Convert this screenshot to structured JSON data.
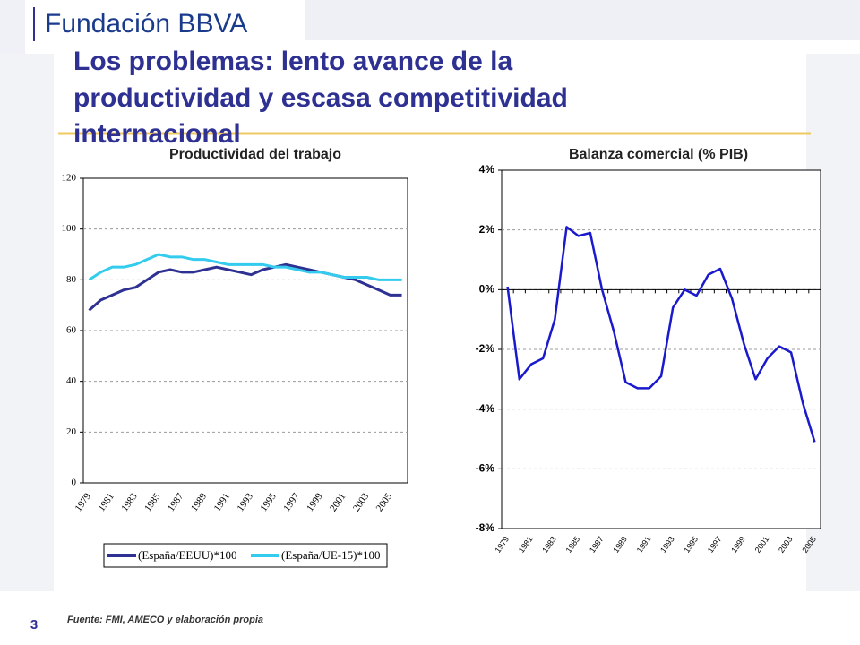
{
  "slide": {
    "logo": "Fundación BBVA",
    "title_lines": [
      "Los problemas: lento avance de la",
      "productividad y escasa competitividad",
      "internacional"
    ],
    "page_number": "3",
    "source": "Fuente:  FMI, AMECO y elaboración propia"
  },
  "chart_data": [
    {
      "type": "line",
      "title": "Productividad del trabajo",
      "categories": [
        "1979",
        null,
        "1981",
        null,
        "1983",
        null,
        "1985",
        null,
        "1987",
        null,
        "1989",
        null,
        "1991",
        null,
        "1993",
        null,
        "1995",
        null,
        "1997",
        null,
        "1999",
        null,
        "2001",
        null,
        "2003",
        null,
        "2005",
        null
      ],
      "series": [
        {
          "name": "(España/EEUU)*100",
          "color": "#2e3192",
          "values": [
            68,
            72,
            74,
            76,
            77,
            80,
            83,
            84,
            83,
            83,
            84,
            85,
            84,
            83,
            82,
            84,
            85,
            86,
            85,
            84,
            83,
            82,
            81,
            80,
            78,
            76,
            74,
            74
          ]
        },
        {
          "name": "(España/UE-15)*100",
          "color": "#33ccee",
          "values": [
            80,
            83,
            85,
            85,
            86,
            88,
            90,
            89,
            89,
            88,
            88,
            87,
            86,
            86,
            86,
            86,
            85,
            85,
            84,
            83,
            83,
            82,
            81,
            81,
            81,
            80,
            80,
            80
          ]
        }
      ],
      "ylim": [
        0,
        120
      ],
      "yticks": [
        0,
        20,
        40,
        60,
        80,
        100,
        120
      ],
      "grid": true
    },
    {
      "type": "line",
      "title": "Balanza comercial (% PIB)",
      "categories": [
        "1979",
        null,
        "1981",
        null,
        "1983",
        null,
        "1985",
        null,
        "1987",
        null,
        "1989",
        null,
        "1991",
        null,
        "1993",
        null,
        "1995",
        null,
        "1997",
        null,
        "1999",
        null,
        "2001",
        null,
        "2003",
        null,
        "2005"
      ],
      "series": [
        {
          "name": null,
          "color": "#1a1acc",
          "values": [
            0.1,
            -3.0,
            -2.5,
            -2.3,
            -1.0,
            2.1,
            1.8,
            1.9,
            0.0,
            -1.4,
            -3.1,
            -3.3,
            -3.3,
            -2.9,
            -0.6,
            0.0,
            -0.2,
            0.5,
            0.7,
            -0.3,
            -1.8,
            -3.0,
            -2.3,
            -1.9,
            -2.1,
            -3.8,
            -5.1
          ]
        }
      ],
      "ylim": [
        -8,
        4
      ],
      "yticks": [
        {
          "value": -8,
          "label": "-8%"
        },
        {
          "value": -6,
          "label": "-6%"
        },
        {
          "value": -4,
          "label": "-4%"
        },
        {
          "value": -2,
          "label": "-2%"
        },
        {
          "value": 0,
          "label": "0%"
        },
        {
          "value": 2,
          "label": "2%"
        },
        {
          "value": 4,
          "label": "4%"
        }
      ],
      "grid": true
    }
  ]
}
